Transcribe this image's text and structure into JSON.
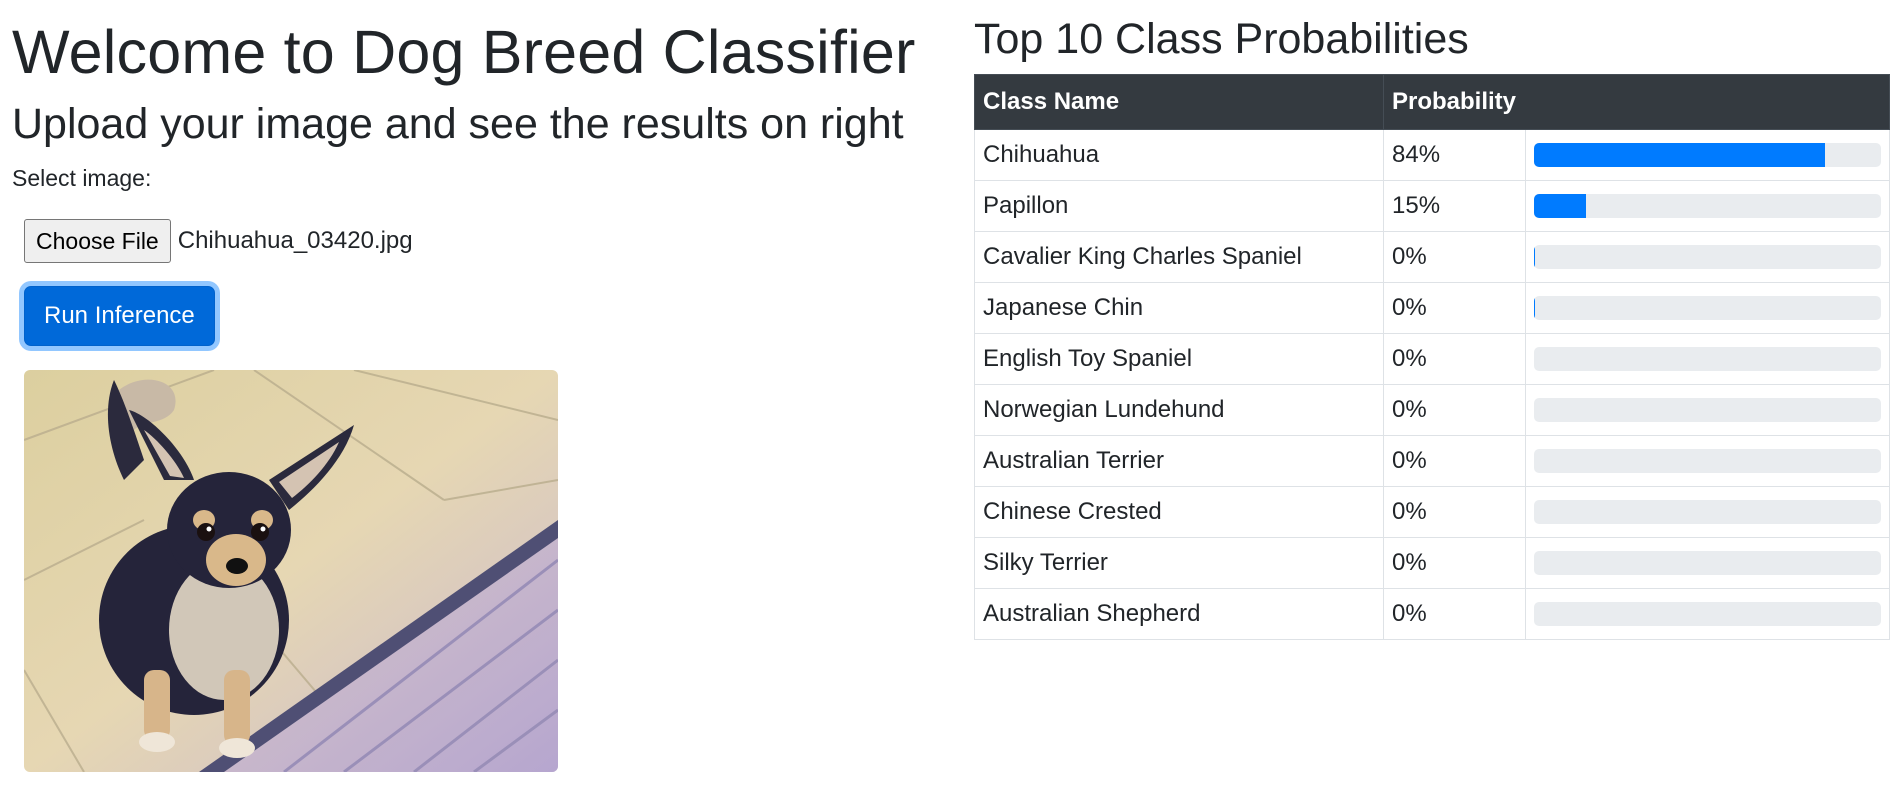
{
  "header": {
    "title": "Welcome to Dog Breed Classifier",
    "subtitle": "Upload your image and see the results on right"
  },
  "upload": {
    "select_label": "Select image:",
    "choose_file_label": "Choose File",
    "file_name": "Chihuahua_03420.jpg",
    "run_button_label": "Run Inference"
  },
  "results": {
    "title": "Top 10 Class Probabilities",
    "columns": [
      "Class Name",
      "Probability"
    ],
    "bar_color": "#007bff",
    "track_color": "#e9ecef",
    "rows": [
      {
        "name": "Chihuahua",
        "prob_label": "84%",
        "fraction": 0.84
      },
      {
        "name": "Papillon",
        "prob_label": "15%",
        "fraction": 0.15
      },
      {
        "name": "Cavalier King Charles Spaniel",
        "prob_label": "0%",
        "fraction": 0.004
      },
      {
        "name": "Japanese Chin",
        "prob_label": "0%",
        "fraction": 0.003
      },
      {
        "name": "English Toy Spaniel",
        "prob_label": "0%",
        "fraction": 0.0
      },
      {
        "name": "Norwegian Lundehund",
        "prob_label": "0%",
        "fraction": 0.0
      },
      {
        "name": "Australian Terrier",
        "prob_label": "0%",
        "fraction": 0.0
      },
      {
        "name": "Chinese Crested",
        "prob_label": "0%",
        "fraction": 0.0
      },
      {
        "name": "Silky Terrier",
        "prob_label": "0%",
        "fraction": 0.0
      },
      {
        "name": "Australian Shepherd",
        "prob_label": "0%",
        "fraction": 0.0
      }
    ]
  }
}
